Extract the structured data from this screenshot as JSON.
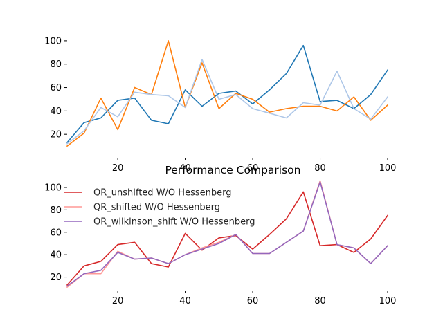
{
  "chart_data": [
    {
      "type": "line",
      "title": "",
      "xlabel": "",
      "ylabel": "",
      "xlim": [
        5,
        100
      ],
      "ylim": [
        0,
        110
      ],
      "xticks": [
        20,
        40,
        60,
        80,
        100
      ],
      "yticks": [
        20,
        40,
        60,
        80,
        100
      ],
      "grid": false,
      "x": [
        5,
        10,
        15,
        20,
        25,
        30,
        35,
        40,
        45,
        50,
        55,
        60,
        65,
        70,
        75,
        80,
        85,
        90,
        95,
        100
      ],
      "series": [
        {
          "color": "#1f77b4",
          "values": [
            13,
            30,
            34,
            49,
            51,
            32,
            29,
            58,
            44,
            55,
            57,
            46,
            58,
            72,
            96,
            48,
            49,
            42,
            54,
            75
          ]
        },
        {
          "color": "#ff7f0e",
          "values": [
            10,
            21,
            51,
            24,
            60,
            54,
            100,
            43,
            81,
            42,
            55,
            50,
            39,
            42,
            44,
            44,
            40,
            52,
            32,
            45
          ]
        },
        {
          "color": "#aec7e8",
          "values": [
            12,
            23,
            43,
            35,
            56,
            54,
            53,
            43,
            84,
            50,
            54,
            42,
            38,
            34,
            47,
            45,
            74,
            42,
            33,
            52
          ]
        }
      ]
    },
    {
      "type": "line",
      "title": "Performance Comparison",
      "xlabel": "",
      "ylabel": "",
      "xlim": [
        5,
        100
      ],
      "ylim": [
        8,
        108
      ],
      "xticks": [
        20,
        40,
        60,
        80,
        100
      ],
      "yticks": [
        20,
        40,
        60,
        80,
        100
      ],
      "grid": false,
      "legend_position": "top-left",
      "x": [
        5,
        10,
        15,
        20,
        25,
        30,
        35,
        40,
        45,
        50,
        55,
        60,
        65,
        70,
        75,
        80,
        85,
        90,
        95,
        100
      ],
      "series": [
        {
          "name": "QR_unshifted W/O Hessenberg",
          "color": "#d62728",
          "values": [
            13,
            30,
            34,
            49,
            51,
            32,
            29,
            59,
            44,
            55,
            57,
            45,
            58,
            72,
            96,
            48,
            49,
            42,
            54,
            75
          ]
        },
        {
          "name": "QR_shifted W/O Hessenberg",
          "color": "#ff9896",
          "values": [
            11,
            23,
            23,
            43,
            36,
            37,
            32,
            40,
            46,
            51,
            58,
            41,
            41,
            51,
            61,
            106,
            49,
            46,
            32,
            48
          ]
        },
        {
          "name": "QR_wilkinson_shift W/O Hessenberg",
          "color": "#9467bd",
          "values": [
            12,
            23,
            26,
            42,
            36,
            37,
            32,
            40,
            45,
            50,
            58,
            41,
            41,
            51,
            61,
            105,
            49,
            46,
            32,
            48
          ]
        }
      ]
    }
  ]
}
